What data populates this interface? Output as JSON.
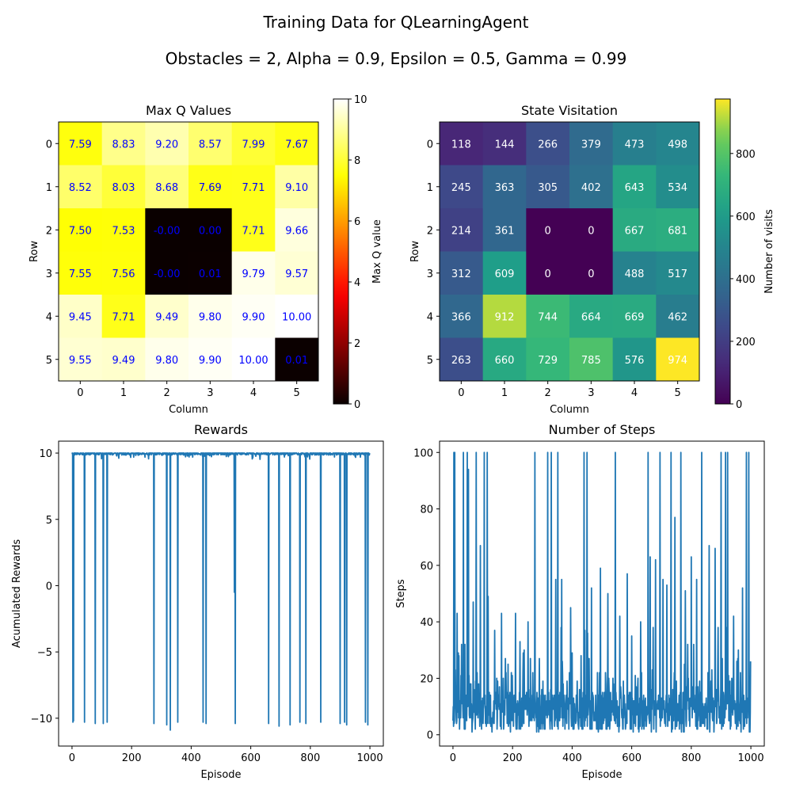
{
  "suptitle": "Training Data for QLearningAgent",
  "subtitle": "Obstacles = 2, Alpha = 0.9, Epsilon = 0.5, Gamma = 0.99",
  "chart_data": [
    {
      "type": "heatmap",
      "title": "Max Q Values",
      "xlabel": "Column",
      "ylabel": "Row",
      "x_ticks": [
        "0",
        "1",
        "2",
        "3",
        "4",
        "5"
      ],
      "y_ticks": [
        "0",
        "1",
        "2",
        "3",
        "4",
        "5"
      ],
      "colormap": "hot",
      "colorbar_label": "Max Q value",
      "colorbar_range": [
        0,
        10
      ],
      "colorbar_ticks": [
        "0",
        "2",
        "4",
        "6",
        "8",
        "10"
      ],
      "annotation_color": "#0000ff",
      "values": [
        [
          7.59,
          8.83,
          9.2,
          8.57,
          7.99,
          7.67
        ],
        [
          8.52,
          8.03,
          8.68,
          7.69,
          7.71,
          9.1
        ],
        [
          7.5,
          7.53,
          -0.0,
          0.0,
          7.71,
          9.66
        ],
        [
          7.55,
          7.56,
          -0.0,
          0.01,
          9.79,
          9.57
        ],
        [
          9.45,
          7.71,
          9.49,
          9.8,
          9.9,
          10.0
        ],
        [
          9.55,
          9.49,
          9.8,
          9.9,
          10.0,
          0.01
        ]
      ],
      "labels": [
        [
          "7.59",
          "8.83",
          "9.20",
          "8.57",
          "7.99",
          "7.67"
        ],
        [
          "8.52",
          "8.03",
          "8.68",
          "7.69",
          "7.71",
          "9.10"
        ],
        [
          "7.50",
          "7.53",
          "-0.00",
          "0.00",
          "7.71",
          "9.66"
        ],
        [
          "7.55",
          "7.56",
          "-0.00",
          "0.01",
          "9.79",
          "9.57"
        ],
        [
          "9.45",
          "7.71",
          "9.49",
          "9.80",
          "9.90",
          "10.00"
        ],
        [
          "9.55",
          "9.49",
          "9.80",
          "9.90",
          "10.00",
          "0.01"
        ]
      ]
    },
    {
      "type": "heatmap",
      "title": "State Visitation",
      "xlabel": "Column",
      "ylabel": "Row",
      "x_ticks": [
        "0",
        "1",
        "2",
        "3",
        "4",
        "5"
      ],
      "y_ticks": [
        "0",
        "1",
        "2",
        "3",
        "4",
        "5"
      ],
      "colormap": "viridis",
      "colorbar_label": "Number of visits",
      "colorbar_range": [
        0,
        974
      ],
      "colorbar_ticks": [
        0,
        200,
        400,
        600,
        800
      ],
      "annotation_color": "#ffffff",
      "values": [
        [
          118,
          144,
          266,
          379,
          473,
          498
        ],
        [
          245,
          363,
          305,
          402,
          643,
          534
        ],
        [
          214,
          361,
          0,
          0,
          667,
          681
        ],
        [
          312,
          609,
          0,
          0,
          488,
          517
        ],
        [
          366,
          912,
          744,
          664,
          669,
          462
        ],
        [
          263,
          660,
          729,
          785,
          576,
          974
        ]
      ]
    },
    {
      "type": "line",
      "title": "Rewards",
      "xlabel": "Episode",
      "ylabel": "Acumulated Rewards",
      "xlim": [
        -45,
        1045
      ],
      "ylim": [
        -12.1,
        10.9
      ],
      "x_ticks": [
        0,
        200,
        400,
        600,
        800,
        1000
      ],
      "y_ticks": [
        -10,
        -5,
        0,
        5,
        10
      ],
      "color": "#1f77b4",
      "baseline": 10.0,
      "dips": [
        {
          "x": 3,
          "y": -10.3
        },
        {
          "x": 5,
          "y": -10.2
        },
        {
          "x": 42,
          "y": -10.3
        },
        {
          "x": 78,
          "y": -10.4
        },
        {
          "x": 105,
          "y": -10.4
        },
        {
          "x": 118,
          "y": -10.3
        },
        {
          "x": 275,
          "y": -10.4
        },
        {
          "x": 318,
          "y": -10.5
        },
        {
          "x": 330,
          "y": -10.9
        },
        {
          "x": 355,
          "y": -10.3
        },
        {
          "x": 440,
          "y": -10.3
        },
        {
          "x": 450,
          "y": -10.4
        },
        {
          "x": 545,
          "y": -0.5
        },
        {
          "x": 548,
          "y": -10.4
        },
        {
          "x": 660,
          "y": -10.4
        },
        {
          "x": 695,
          "y": -10.6
        },
        {
          "x": 732,
          "y": -10.5
        },
        {
          "x": 765,
          "y": -10.3
        },
        {
          "x": 785,
          "y": -10.4
        },
        {
          "x": 835,
          "y": -10.3
        },
        {
          "x": 900,
          "y": -10.4
        },
        {
          "x": 915,
          "y": -10.3
        },
        {
          "x": 922,
          "y": -10.5
        },
        {
          "x": 985,
          "y": -10.3
        },
        {
          "x": 993,
          "y": -10.5
        }
      ]
    },
    {
      "type": "line",
      "title": "Number of Steps",
      "xlabel": "Episode",
      "ylabel": "Steps",
      "xlim": [
        -45,
        1045
      ],
      "ylim": [
        -4,
        104
      ],
      "x_ticks": [
        0,
        200,
        400,
        600,
        800,
        1000
      ],
      "y_ticks": [
        0,
        20,
        40,
        60,
        80,
        100
      ],
      "color": "#1f77b4",
      "peaks": [
        {
          "x": 0,
          "y": 5
        },
        {
          "x": 3,
          "y": 100
        },
        {
          "x": 6,
          "y": 100
        },
        {
          "x": 9,
          "y": 12
        },
        {
          "x": 14,
          "y": 43
        },
        {
          "x": 20,
          "y": 28
        },
        {
          "x": 35,
          "y": 100
        },
        {
          "x": 48,
          "y": 100
        },
        {
          "x": 52,
          "y": 94
        },
        {
          "x": 68,
          "y": 47
        },
        {
          "x": 78,
          "y": 100
        },
        {
          "x": 92,
          "y": 67
        },
        {
          "x": 105,
          "y": 100
        },
        {
          "x": 115,
          "y": 100
        },
        {
          "x": 118,
          "y": 49
        },
        {
          "x": 140,
          "y": 37
        },
        {
          "x": 163,
          "y": 43
        },
        {
          "x": 185,
          "y": 25
        },
        {
          "x": 210,
          "y": 43
        },
        {
          "x": 225,
          "y": 33
        },
        {
          "x": 252,
          "y": 40
        },
        {
          "x": 275,
          "y": 100
        },
        {
          "x": 290,
          "y": 27
        },
        {
          "x": 318,
          "y": 100
        },
        {
          "x": 330,
          "y": 100
        },
        {
          "x": 345,
          "y": 55
        },
        {
          "x": 352,
          "y": 100
        },
        {
          "x": 365,
          "y": 55
        },
        {
          "x": 395,
          "y": 45
        },
        {
          "x": 430,
          "y": 28
        },
        {
          "x": 440,
          "y": 100
        },
        {
          "x": 450,
          "y": 100
        },
        {
          "x": 465,
          "y": 52
        },
        {
          "x": 495,
          "y": 59
        },
        {
          "x": 520,
          "y": 50
        },
        {
          "x": 545,
          "y": 100
        },
        {
          "x": 560,
          "y": 42
        },
        {
          "x": 585,
          "y": 57
        },
        {
          "x": 600,
          "y": 35
        },
        {
          "x": 630,
          "y": 40
        },
        {
          "x": 655,
          "y": 100
        },
        {
          "x": 662,
          "y": 63
        },
        {
          "x": 680,
          "y": 62
        },
        {
          "x": 695,
          "y": 100
        },
        {
          "x": 705,
          "y": 55
        },
        {
          "x": 718,
          "y": 53
        },
        {
          "x": 732,
          "y": 100
        },
        {
          "x": 745,
          "y": 77
        },
        {
          "x": 765,
          "y": 100
        },
        {
          "x": 780,
          "y": 51
        },
        {
          "x": 800,
          "y": 63
        },
        {
          "x": 818,
          "y": 55
        },
        {
          "x": 835,
          "y": 100
        },
        {
          "x": 860,
          "y": 67
        },
        {
          "x": 880,
          "y": 66
        },
        {
          "x": 900,
          "y": 100
        },
        {
          "x": 915,
          "y": 100
        },
        {
          "x": 922,
          "y": 100
        },
        {
          "x": 942,
          "y": 42
        },
        {
          "x": 958,
          "y": 30
        },
        {
          "x": 972,
          "y": 52
        },
        {
          "x": 985,
          "y": 100
        },
        {
          "x": 993,
          "y": 100
        },
        {
          "x": 999,
          "y": 26
        }
      ],
      "baseline_range": [
        1,
        15
      ]
    }
  ]
}
